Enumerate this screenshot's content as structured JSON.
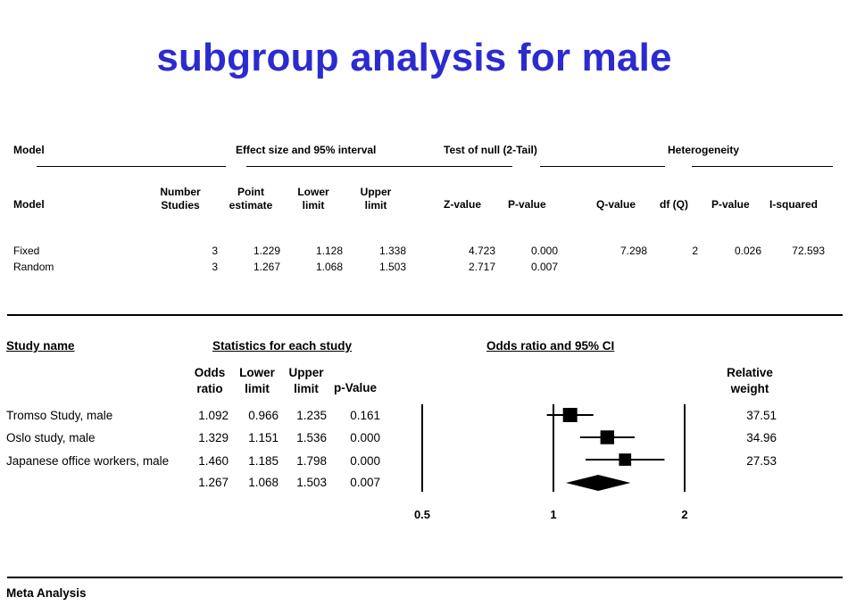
{
  "title": "subgroup analysis for male",
  "summary_table": {
    "group_headers": {
      "model": "Model",
      "effect": "Effect size and 95% interval",
      "null_test": "Test of null (2-Tail)",
      "heterogeneity": "Heterogeneity"
    },
    "columns": {
      "model": "Model",
      "number_studies": [
        "Number",
        "Studies"
      ],
      "point_estimate": [
        "Point",
        "estimate"
      ],
      "lower_limit": [
        "Lower",
        "limit"
      ],
      "upper_limit": [
        "Upper",
        "limit"
      ],
      "z_value": "Z-value",
      "p_value": "P-value",
      "q_value": "Q-value",
      "df_q": "df (Q)",
      "het_p_value": "P-value",
      "i_squared": "I-squared"
    },
    "rows": [
      {
        "model": "Fixed",
        "n": "3",
        "point": "1.229",
        "lower": "1.128",
        "upper": "1.338",
        "z": "4.723",
        "p": "0.000",
        "q": "7.298",
        "df": "2",
        "hp": "0.026",
        "i2": "72.593"
      },
      {
        "model": "Random",
        "n": "3",
        "point": "1.267",
        "lower": "1.068",
        "upper": "1.503",
        "z": "2.717",
        "p": "0.007",
        "q": "",
        "df": "",
        "hp": "",
        "i2": ""
      }
    ]
  },
  "study_table": {
    "headers": {
      "study_name": "Study name",
      "stats": "Statistics for each study",
      "plot": "Odds ratio and 95% CI",
      "odds_ratio": [
        "Odds",
        "ratio"
      ],
      "lower_limit": [
        "Lower",
        "limit"
      ],
      "upper_limit": [
        "Upper",
        "limit"
      ],
      "p_value": "p-Value",
      "relative_weight": [
        "Relative",
        "weight"
      ]
    },
    "rows": [
      {
        "name": "Tromso Study, male",
        "or": "1.092",
        "lower": "0.966",
        "upper": "1.235",
        "p": "0.161",
        "weight": "37.51"
      },
      {
        "name": "Oslo study, male",
        "or": "1.329",
        "lower": "1.151",
        "upper": "1.536",
        "p": "0.000",
        "weight": "34.96"
      },
      {
        "name": "Japanese office workers, male",
        "or": "1.460",
        "lower": "1.185",
        "upper": "1.798",
        "p": "0.000",
        "weight": "27.53"
      },
      {
        "name": "",
        "or": "1.267",
        "lower": "1.068",
        "upper": "1.503",
        "p": "0.007",
        "weight": ""
      }
    ]
  },
  "footer": "Meta Analysis",
  "chart_data": {
    "type": "forest",
    "title": "Odds ratio and 95% CI",
    "x_scale": "log",
    "xlim": [
      0.5,
      2
    ],
    "x_ticks": [
      0.5,
      1,
      2
    ],
    "x_tick_labels": [
      "0.5",
      "1",
      "2"
    ],
    "reference_line": 1,
    "studies": [
      {
        "name": "Tromso Study, male",
        "estimate": 1.092,
        "lower": 0.966,
        "upper": 1.235,
        "weight": 37.51
      },
      {
        "name": "Oslo study, male",
        "estimate": 1.329,
        "lower": 1.151,
        "upper": 1.536,
        "weight": 34.96
      },
      {
        "name": "Japanese office workers, male",
        "estimate": 1.46,
        "lower": 1.185,
        "upper": 1.798,
        "weight": 27.53
      }
    ],
    "summary": {
      "estimate": 1.267,
      "lower": 1.068,
      "upper": 1.503
    },
    "colors": {
      "marker": "#000000",
      "title": "#2b2bd0"
    }
  }
}
